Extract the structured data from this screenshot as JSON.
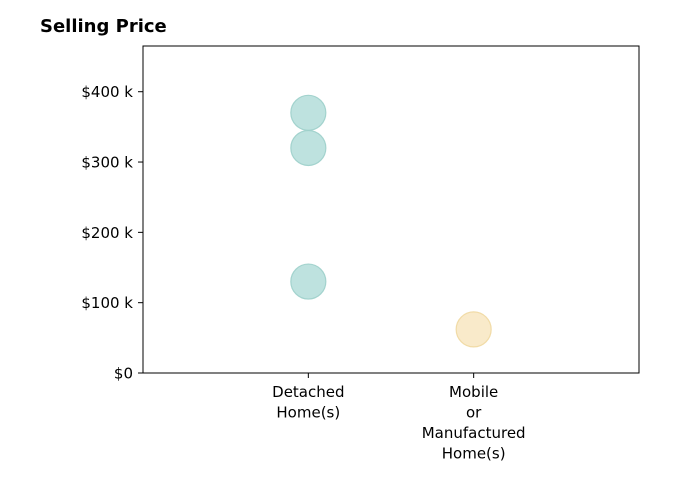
{
  "chart_data": {
    "type": "scatter",
    "title": "Selling Price",
    "xlabel": "",
    "ylabel": "",
    "categories": [
      "Detached Home(s)",
      "Mobile or Manufactured Home(s)"
    ],
    "category_tick_lines": [
      [
        "Detached",
        "Home(s)"
      ],
      [
        "Mobile",
        "or",
        "Manufactured",
        "Home(s)"
      ]
    ],
    "ylim": [
      0,
      465000
    ],
    "yticks": [
      0,
      100000,
      200000,
      300000,
      400000
    ],
    "ytick_labels": [
      "$0",
      "$100 k",
      "$200 k",
      "$300 k",
      "$400 k"
    ],
    "grid": false,
    "legend": "none",
    "points": [
      {
        "category": "Detached Home(s)",
        "value": 370000,
        "color": "#a8d8d4"
      },
      {
        "category": "Detached Home(s)",
        "value": 320000,
        "color": "#a8d8d4"
      },
      {
        "category": "Detached Home(s)",
        "value": 130000,
        "color": "#a8d8d4"
      },
      {
        "category": "Mobile or Manufactured Home(s)",
        "value": 62000,
        "color": "#f7e3b8"
      }
    ]
  }
}
